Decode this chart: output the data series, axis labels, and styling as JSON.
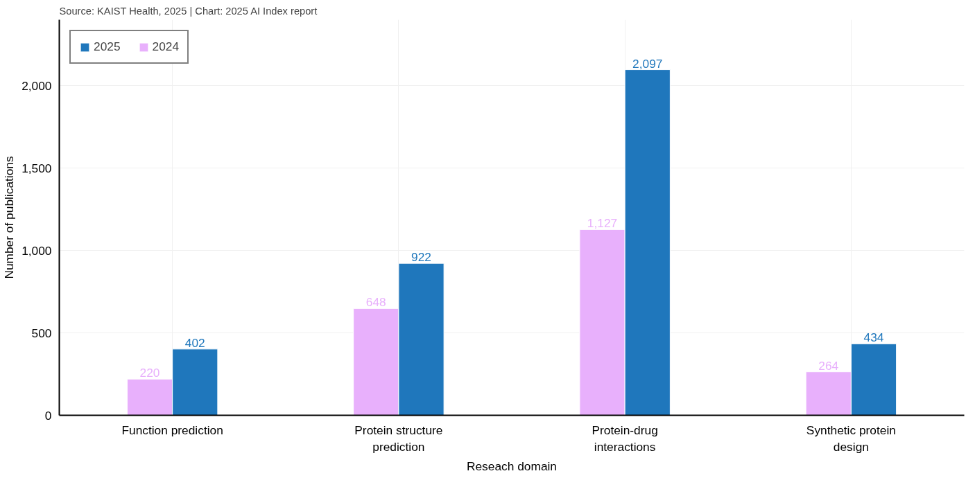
{
  "chart_data": {
    "type": "bar",
    "categories": [
      "Function prediction",
      "Protein structure prediction",
      "Protein-drug interactions",
      "Synthetic protein design"
    ],
    "series": [
      {
        "name": "2024",
        "color": "#e8b0fc",
        "values": [
          220,
          648,
          1127,
          264
        ],
        "value_labels": [
          "220",
          "648",
          "1,127",
          "264"
        ]
      },
      {
        "name": "2025",
        "color": "#1f77bc",
        "values": [
          402,
          922,
          2097,
          434
        ],
        "value_labels": [
          "402",
          "922",
          "2,097",
          "434"
        ]
      }
    ],
    "xlabel": "Reseach domain",
    "ylabel": "Number of publications",
    "ylim": [
      0,
      2400
    ],
    "yticks": [
      0,
      {
        "value": 500,
        "label": "500"
      },
      {
        "value": 1000,
        "label": "1,000"
      },
      {
        "value": 1500,
        "label": "1,500"
      },
      {
        "value": 2000,
        "label": "2,000"
      }
    ],
    "grid": true,
    "legend": "top left",
    "annotations": [
      "Source: KAIST Health, 2025 | Chart: 2025 AI Index report"
    ]
  }
}
